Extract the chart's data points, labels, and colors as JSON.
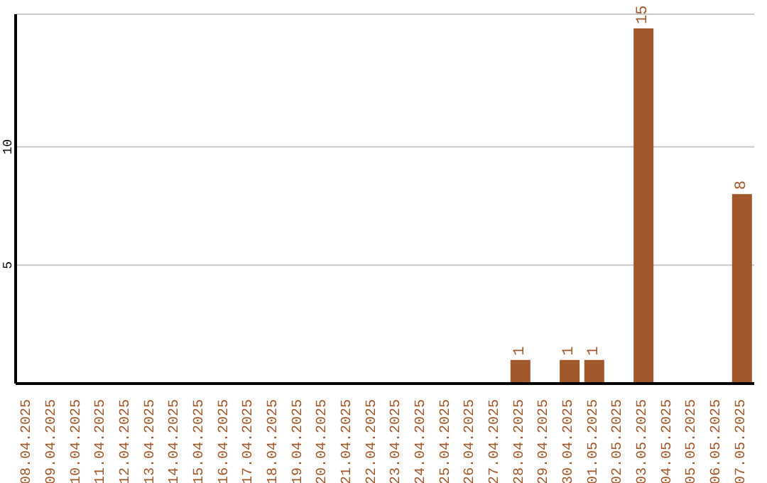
{
  "chart_data": {
    "type": "bar",
    "categories": [
      "08.04.2025",
      "09.04.2025",
      "10.04.2025",
      "11.04.2025",
      "12.04.2025",
      "13.04.2025",
      "14.04.2025",
      "15.04.2025",
      "16.04.2025",
      "17.04.2025",
      "18.04.2025",
      "19.04.2025",
      "20.04.2025",
      "21.04.2025",
      "22.04.2025",
      "23.04.2025",
      "24.04.2025",
      "25.04.2025",
      "26.04.2025",
      "27.04.2025",
      "28.04.2025",
      "29.04.2025",
      "30.04.2025",
      "01.05.2025",
      "02.05.2025",
      "03.05.2025",
      "04.05.2025",
      "05.05.2025",
      "06.05.2025",
      "07.05.2025"
    ],
    "values": [
      0,
      0,
      0,
      0,
      0,
      0,
      0,
      0,
      0,
      0,
      0,
      0,
      0,
      0,
      0,
      0,
      0,
      0,
      0,
      0,
      1,
      0,
      1,
      1,
      0,
      15,
      0,
      0,
      0,
      8
    ],
    "value_labels": [
      null,
      null,
      null,
      null,
      null,
      null,
      null,
      null,
      null,
      null,
      null,
      null,
      null,
      null,
      null,
      null,
      null,
      null,
      null,
      null,
      "1",
      null,
      "1",
      "1",
      null,
      "15",
      null,
      null,
      null,
      "8"
    ],
    "color": "#a0572a",
    "ylim": [
      0,
      15.6
    ],
    "yticks": [
      5,
      10
    ],
    "grid": "y"
  }
}
